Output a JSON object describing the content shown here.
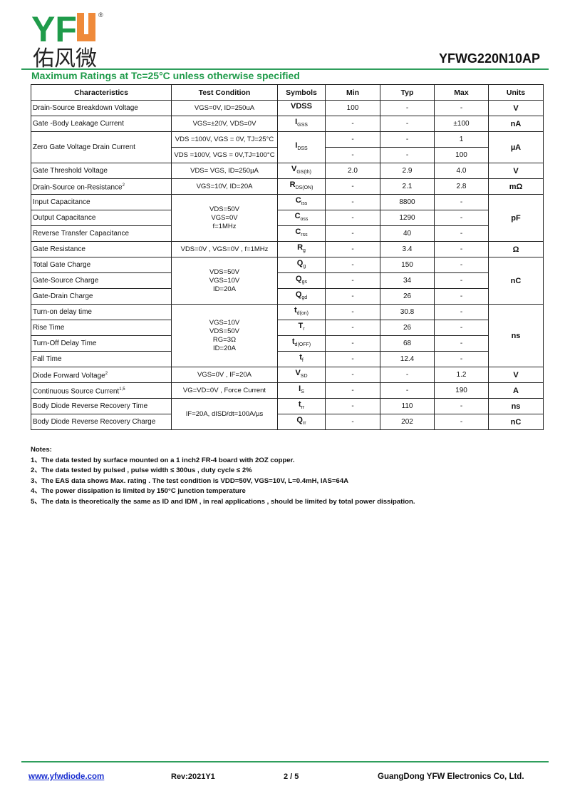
{
  "logo": {
    "text": "YFW",
    "registered": "®",
    "chinese": "佑风微",
    "green": "#1f9b4a",
    "orange": "#ef8a3a"
  },
  "header": {
    "part_number": "YFWG220N10AP"
  },
  "section": {
    "title": "Maximum Ratings at Tc=25°C unless otherwise specified"
  },
  "colors": {
    "accent_green": "#1f9b4a",
    "rule_green": "#2f9e5c",
    "link_blue": "#1a2fd0"
  },
  "table": {
    "headers": [
      "Characteristics",
      "Test Condition",
      "Symbols",
      "Min",
      "Typ",
      "Max",
      "Units"
    ],
    "rows": [
      {
        "name": "Drain-Source Breakdown Voltage",
        "cond": "VGS=0V, ID=250uA",
        "sym": {
          "m": "VDSS",
          "s": ""
        },
        "min": "100",
        "typ": "-",
        "max": "-",
        "unit": "V"
      },
      {
        "name": "Gate -Body Leakage Current",
        "cond": "VGS=±20V, VDS=0V",
        "sym": {
          "m": "I",
          "s": "GSS"
        },
        "min": "-",
        "typ": "-",
        "max": "±100",
        "unit": "nA"
      },
      {
        "name": "Zero Gate Voltage Drain Current",
        "cond": "VDS =100V, VGS = 0V, TJ=25°C",
        "sym": {
          "m": "I",
          "s": "DSS"
        },
        "min": "-",
        "typ": "-",
        "max": "1",
        "unit": "µA"
      },
      {
        "name": null,
        "cond": "VDS =100V, VGS = 0V,TJ=100°C",
        "sym": null,
        "min": "-",
        "typ": "-",
        "max": "100",
        "unit": null
      },
      {
        "name": "Gate Threshold Voltage",
        "cond": "VDS= VGS, ID=250µA",
        "sym": {
          "m": "V",
          "s": "GS(th)"
        },
        "min": "2.0",
        "typ": "2.9",
        "max": "4.0",
        "unit": "V"
      },
      {
        "name": "Drain-Source on-Resistance",
        "note": "2",
        "cond": "VGS=10V, ID=20A",
        "sym": {
          "m": "R",
          "s": "DS(ON)"
        },
        "min": "-",
        "typ": "2.1",
        "max": "2.8",
        "unit": "mΩ"
      },
      {
        "name": "Input Capacitance",
        "cond": "VDS=50V\nVGS=0V\nf=1MHz",
        "sym": {
          "m": "C",
          "s": "iss"
        },
        "min": "-",
        "typ": "8800",
        "max": "-",
        "unit": "pF"
      },
      {
        "name": "Output Capacitance",
        "cond": null,
        "sym": {
          "m": "C",
          "s": "oss"
        },
        "min": "-",
        "typ": "1290",
        "max": "-",
        "unit": null
      },
      {
        "name": "Reverse Transfer Capacitance",
        "cond": null,
        "sym": {
          "m": "C",
          "s": "rss"
        },
        "min": "-",
        "typ": "40",
        "max": "-",
        "unit": null
      },
      {
        "name": "Gate Resistance",
        "cond": "VDS=0V , VGS=0V , f=1MHz",
        "sym": {
          "m": "R",
          "s": "g"
        },
        "min": "-",
        "typ": "3.4",
        "max": "-",
        "unit": "Ω"
      },
      {
        "name": "Total Gate Charge",
        "cond": "VDS=50V\nVGS=10V\nID=20A",
        "sym": {
          "m": "Q",
          "s": "g"
        },
        "min": "-",
        "typ": "150",
        "max": "-",
        "unit": "nC"
      },
      {
        "name": "Gate-Source Charge",
        "cond": null,
        "sym": {
          "m": "Q",
          "s": "gs"
        },
        "min": "-",
        "typ": "34",
        "max": "-",
        "unit": null
      },
      {
        "name": "Gate-Drain Charge",
        "cond": null,
        "sym": {
          "m": "Q",
          "s": "gd"
        },
        "min": "-",
        "typ": "26",
        "max": "-",
        "unit": null
      },
      {
        "name": "Turn-on delay time",
        "cond": "VGS=10V\nVDS=50V\nRG=3Ω\nID=20A",
        "sym": {
          "m": "t",
          "s": "d(on)"
        },
        "min": "-",
        "typ": "30.8",
        "max": "-",
        "unit": "ns"
      },
      {
        "name": "Rise Time",
        "cond": null,
        "sym": {
          "m": "T",
          "s": "r"
        },
        "min": "-",
        "typ": "26",
        "max": "-",
        "unit": null
      },
      {
        "name": "Turn-Off  Delay Time",
        "cond": null,
        "sym": {
          "m": "t",
          "s": "d(OFF)"
        },
        "min": "-",
        "typ": "68",
        "max": "-",
        "unit": null
      },
      {
        "name": "Fall Time",
        "cond": null,
        "sym": {
          "m": "t",
          "s": "f"
        },
        "min": "-",
        "typ": "12.4",
        "max": "-",
        "unit": null
      },
      {
        "name": "Diode Forward Voltage",
        "note": "2",
        "cond": "VGS=0V , IF=20A",
        "sym": {
          "m": "V",
          "s": "SD"
        },
        "min": "-",
        "typ": "-",
        "max": "1.2",
        "unit": "V"
      },
      {
        "name": "Continuous Source Current",
        "note": "1,5",
        "cond": "VG=VD=0V , Force Current",
        "sym": {
          "m": "I",
          "s": "S"
        },
        "min": "-",
        "typ": "-",
        "max": "190",
        "unit": "A"
      },
      {
        "name": "Body Diode Reverse Recovery Time",
        "cond": "IF=20A, dISD/dt=100A/µs",
        "sym": {
          "m": "t",
          "s": "rr"
        },
        "min": "-",
        "typ": "110",
        "max": "-",
        "unit": "ns"
      },
      {
        "name": "Body Diode Reverse Recovery Charge",
        "cond": null,
        "sym": {
          "m": "Q",
          "s": "rr"
        },
        "min": "-",
        "typ": "202",
        "max": "-",
        "unit": "nC"
      }
    ]
  },
  "notes": {
    "title": "Notes:",
    "items": [
      "1、The data tested by surface mounted on a 1 inch2 FR-4 board with 2OZ copper.",
      "2、The data tested by pulsed , pulse width ≤ 300us , duty cycle ≤ 2%",
      "3、The EAS data shows Max. rating . The test condition is VDD=50V, VGS=10V, L=0.4mH, IAS=64A",
      "4、The power dissipation is limited by 150°C junction temperature",
      "5、The data is theoretically the same as ID and IDM , in real applications , should be limited by total power dissipation."
    ]
  },
  "footer": {
    "website": "www.yfwdiode.com",
    "revision": "Rev:2021Y1",
    "page": "2 / 5",
    "company": "GuangDong YFW Electronics Co, Ltd."
  }
}
